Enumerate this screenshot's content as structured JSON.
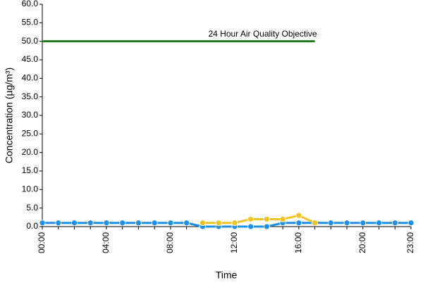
{
  "chart_data": {
    "type": "line",
    "y_label": "Concentration (µg/m³)",
    "x_label": "Time",
    "categories": [
      "00:00",
      null,
      null,
      null,
      "04:00",
      null,
      null,
      null,
      "08:00",
      null,
      null,
      null,
      "12:00",
      null,
      null,
      null,
      "16:00",
      null,
      null,
      null,
      "20:00",
      null,
      null,
      "23:00"
    ],
    "series": [
      {
        "name": "24 Hour Air Quality Objective",
        "color": "#1e7a1e",
        "values": [
          50,
          50,
          50,
          50,
          50,
          50,
          50,
          50,
          50,
          50,
          50,
          50,
          50,
          50,
          50,
          50,
          50,
          50,
          null,
          null,
          null,
          null,
          null,
          null
        ]
      },
      {
        "color": "#1e90e8",
        "values": [
          1,
          1,
          1,
          1,
          1,
          1,
          1,
          1,
          1,
          1,
          0,
          0,
          0,
          0,
          0,
          1,
          1,
          1,
          1,
          1,
          1,
          1,
          1,
          1
        ]
      },
      {
        "color": "#f0c420",
        "values": [
          null,
          null,
          null,
          null,
          null,
          null,
          null,
          null,
          null,
          null,
          1,
          1,
          1,
          2,
          2,
          2,
          3,
          1,
          null,
          null,
          null,
          null,
          null,
          null
        ]
      }
    ],
    "ylim": [
      0,
      60
    ],
    "yticks": [
      {
        "value": 0,
        "label": "0.0"
      },
      {
        "value": 5,
        "label": "5.0"
      },
      {
        "value": 10,
        "label": "10.0"
      },
      {
        "value": 15,
        "label": "15.0"
      },
      {
        "value": 20,
        "label": "20.0"
      },
      {
        "value": 25,
        "label": "25.0"
      },
      {
        "value": 30,
        "label": "30.0"
      },
      {
        "value": 35,
        "label": "35.0"
      },
      {
        "value": 40,
        "label": "40.0"
      },
      {
        "value": 45,
        "label": "45.0"
      },
      {
        "value": 50,
        "label": "50.0"
      },
      {
        "value": 55,
        "label": "55.0"
      },
      {
        "value": 60,
        "label": "60.0"
      }
    ],
    "grid": false
  }
}
